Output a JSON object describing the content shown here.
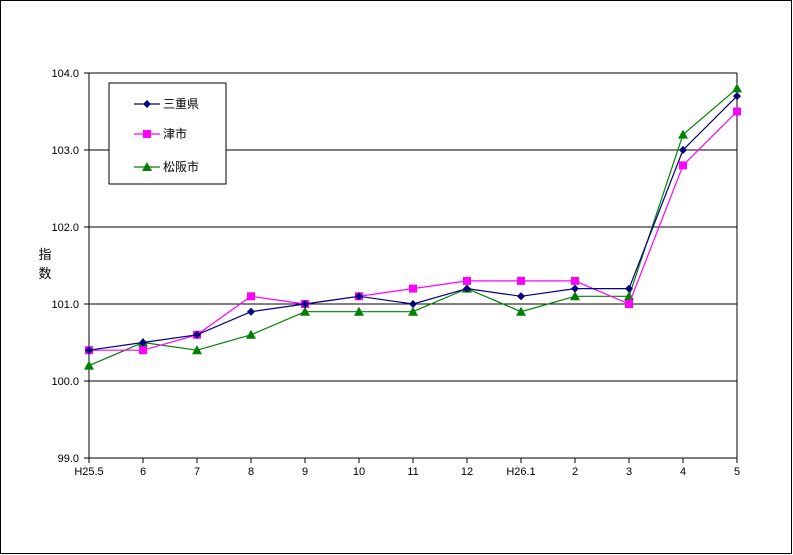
{
  "chart_data": {
    "type": "line",
    "ylabel_chars": [
      "指",
      "数"
    ],
    "categories": [
      "H25.5",
      "6",
      "7",
      "8",
      "9",
      "10",
      "11",
      "12",
      "H26.1",
      "2",
      "3",
      "4",
      "5"
    ],
    "ylim": [
      99.0,
      104.0
    ],
    "yticks": [
      "99.0",
      "100.0",
      "101.0",
      "102.0",
      "103.0",
      "104.0"
    ],
    "grid": true,
    "legend_position": "top-left",
    "series": [
      {
        "name": "三重県",
        "color": "#000080",
        "marker": "diamond",
        "values": [
          100.4,
          100.5,
          100.6,
          100.9,
          101.0,
          101.1,
          101.0,
          101.2,
          101.1,
          101.2,
          101.2,
          103.0,
          103.7
        ]
      },
      {
        "name": "津市",
        "color": "#FF00FF",
        "marker": "square",
        "values": [
          100.4,
          100.4,
          100.6,
          101.1,
          101.0,
          101.1,
          101.2,
          101.3,
          101.3,
          101.3,
          101.0,
          102.8,
          103.5
        ]
      },
      {
        "name": "松阪市",
        "color": "#008000",
        "marker": "triangle",
        "values": [
          100.2,
          100.5,
          100.4,
          100.6,
          100.9,
          100.9,
          100.9,
          101.2,
          100.9,
          101.1,
          101.1,
          103.2,
          103.8
        ]
      }
    ]
  }
}
